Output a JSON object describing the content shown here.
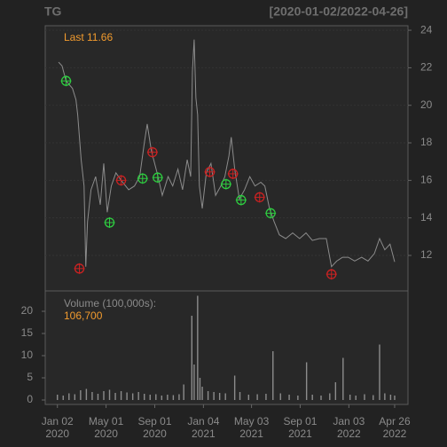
{
  "chart_data": [
    {
      "type": "line",
      "title": "TG",
      "subtitle": "[2020-01-02/2022-04-26]",
      "annotation": "Last 11.66",
      "color": "#8c8c8c",
      "grid": true,
      "x": [
        2,
        8,
        15,
        26,
        32,
        35,
        41,
        46,
        49,
        52,
        58,
        66,
        74,
        80,
        86,
        93,
        101,
        110,
        123,
        133,
        142,
        150,
        155,
        162,
        172,
        181,
        191,
        199,
        208,
        216,
        224,
        230,
        233,
        236,
        239,
        242,
        245,
        250,
        257,
        265,
        273,
        282,
        289,
        296,
        300,
        306,
        314,
        323,
        332,
        341,
        351,
        358,
        366,
        374,
        383,
        394,
        406,
        418,
        429,
        440,
        452,
        464,
        473,
        482,
        492,
        502,
        513,
        525,
        536,
        547,
        556,
        565,
        574,
        582
      ],
      "values": [
        22.3,
        22.1,
        21.3,
        20.9,
        20.3,
        19.5,
        17.1,
        15.7,
        11.4,
        13.8,
        15.5,
        16.2,
        14.7,
        16.9,
        14.3,
        15.7,
        16.4,
        16.0,
        15.5,
        15.7,
        16.2,
        18.0,
        19.0,
        17.6,
        16.4,
        15.2,
        16.2,
        15.7,
        16.6,
        15.5,
        17.1,
        16.2,
        21.8,
        23.5,
        20.4,
        19.5,
        15.7,
        14.5,
        16.4,
        16.9,
        15.2,
        15.7,
        16.2,
        17.3,
        18.3,
        16.6,
        15.0,
        15.5,
        16.2,
        15.7,
        15.9,
        15.7,
        14.5,
        13.8,
        13.1,
        12.9,
        13.2,
        12.9,
        13.2,
        12.8,
        12.9,
        12.9,
        11.4,
        11.7,
        11.9,
        11.9,
        11.7,
        11.9,
        11.7,
        12.1,
        12.9,
        12.3,
        12.6,
        11.66
      ],
      "buy": {
        "color": "#2ecc40",
        "x": [
          15,
          90,
          147,
          173,
          291,
          317,
          368
        ],
        "values": [
          21.3,
          13.75,
          16.1,
          16.15,
          15.8,
          14.95,
          14.25
        ]
      },
      "sell": {
        "color": "#cc2222",
        "x": [
          38,
          110,
          164,
          263,
          303,
          349,
          473
        ],
        "values": [
          11.3,
          16.0,
          17.5,
          16.45,
          16.35,
          15.1,
          11.0
        ]
      },
      "xlim": [
        -21,
        605
      ],
      "ylim": [
        10.11,
        24.24
      ],
      "yticks": [
        12,
        14,
        16,
        18,
        20,
        22,
        24
      ]
    },
    {
      "type": "bar",
      "annotation": "Volume (100,000s):",
      "value_label": "106,700",
      "color": "#8c8c8c",
      "x": [
        0,
        10,
        20,
        30,
        40,
        50,
        60,
        70,
        80,
        90,
        100,
        110,
        120,
        130,
        140,
        150,
        160,
        170,
        180,
        190,
        200,
        210,
        218,
        232,
        236,
        242,
        246,
        250,
        260,
        270,
        280,
        290,
        306,
        315,
        330,
        345,
        360,
        372,
        385,
        400,
        415,
        430,
        440,
        455,
        470,
        480,
        493,
        505,
        515,
        530,
        545,
        556,
        565,
        575,
        582
      ],
      "values": [
        1.2,
        1.0,
        1.5,
        1.3,
        2.2,
        2.5,
        1.8,
        1.4,
        2.0,
        2.3,
        1.6,
        2.0,
        1.7,
        1.5,
        1.8,
        1.4,
        1.2,
        1.3,
        1.0,
        1.2,
        1.1,
        1.3,
        3.5,
        19.0,
        8.0,
        23.5,
        5.0,
        3.0,
        2.0,
        1.8,
        1.6,
        1.5,
        5.5,
        1.8,
        1.2,
        1.3,
        1.4,
        11.0,
        1.5,
        1.2,
        1.0,
        8.5,
        1.2,
        1.0,
        1.5,
        4.0,
        9.5,
        1.2,
        1.0,
        1.3,
        1.1,
        12.5,
        1.5,
        1.2,
        1.0
      ],
      "xlim": [
        -21,
        605
      ],
      "ylim": [
        -1,
        24.6
      ],
      "yticks": [
        0,
        5,
        10,
        15,
        20
      ],
      "xticks": [
        {
          "value": 0,
          "label": [
            "Jan 02",
            "2020"
          ]
        },
        {
          "value": 84,
          "label": [
            "May 01",
            "2020"
          ]
        },
        {
          "value": 168,
          "label": [
            "Sep 01",
            "2020"
          ]
        },
        {
          "value": 252,
          "label": [
            "Jan 04",
            "2021"
          ]
        },
        {
          "value": 335,
          "label": [
            "May 03",
            "2021"
          ]
        },
        {
          "value": 419,
          "label": [
            "Sep 01",
            "2021"
          ]
        },
        {
          "value": 503,
          "label": [
            "Jan 03",
            "2022"
          ]
        },
        {
          "value": 582,
          "label": [
            "Apr 26",
            "2022"
          ]
        }
      ]
    }
  ]
}
